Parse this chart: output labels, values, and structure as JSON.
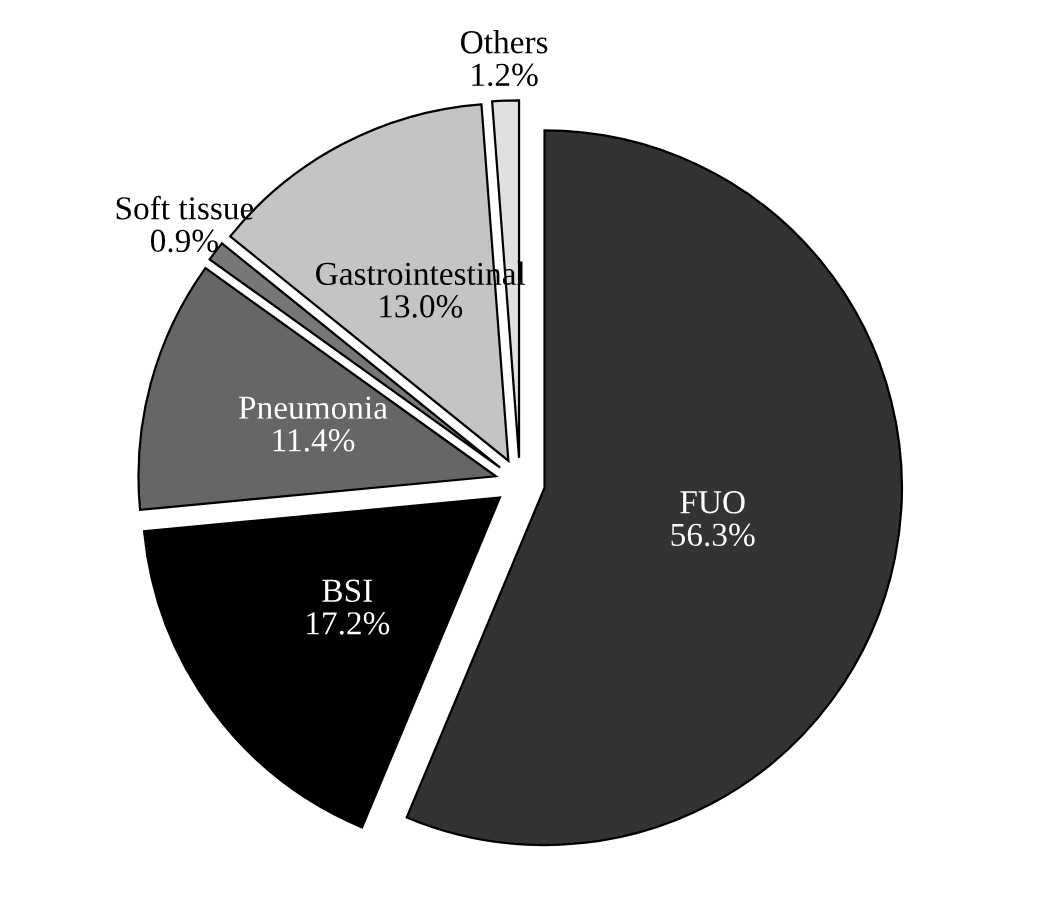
{
  "chart_data": {
    "type": "pie",
    "categories": [
      "FUO",
      "BSI",
      "Pneumonia",
      "Soft tissue",
      "Gastrointestinal",
      "Others"
    ],
    "values": [
      56.3,
      17.2,
      11.4,
      0.9,
      13.0,
      1.2
    ],
    "value_labels": [
      "56.3%",
      "17.2%",
      "11.4%",
      "0.9%",
      "13.0%",
      "1.2%"
    ],
    "colors": [
      "#333333",
      "#000000",
      "#666666",
      "#777777",
      "#c4c4c4",
      "#e0e0e0"
    ],
    "legend": false
  }
}
